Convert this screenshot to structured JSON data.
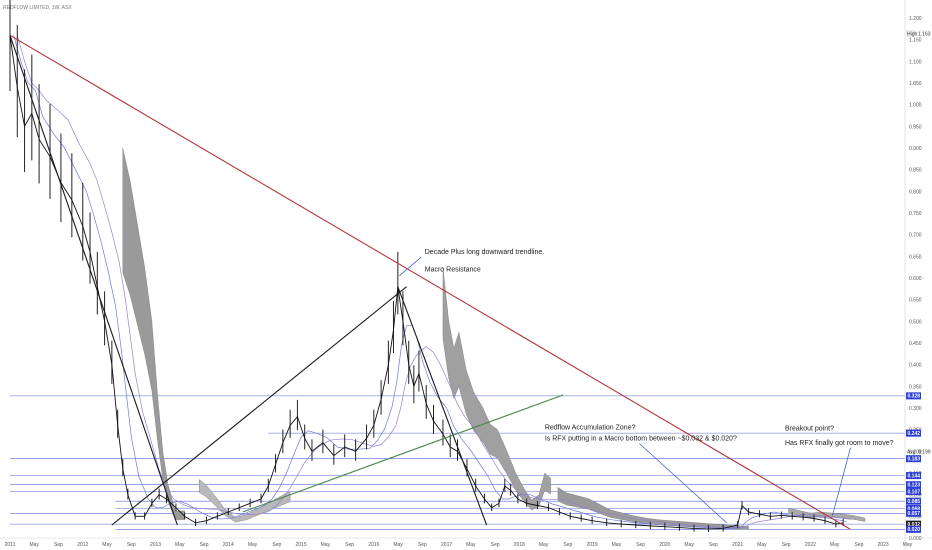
{
  "chart_data": {
    "type": "line",
    "title": "REDFLOW LIMITED, 1W, ASX",
    "y_axis": {
      "min": 0.0,
      "max": 1.2,
      "ticks": [
        "1.200",
        "1.150",
        "1.100",
        "1.050",
        "1.000",
        "0.950",
        "0.900",
        "0.850",
        "0.800",
        "0.750",
        "0.700",
        "0.650",
        "0.600",
        "0.550",
        "0.500",
        "0.450",
        "0.400",
        "0.350",
        "0.300",
        "0.250",
        "0.200",
        "0.150",
        "0.100",
        "0.050",
        "0.000"
      ],
      "price_tags": [
        {
          "label": "0.328",
          "value": 0.328,
          "color": "#2a3bd6"
        },
        {
          "label": "0.242",
          "value": 0.242,
          "color": "#2a3bd6"
        },
        {
          "label": "0.183",
          "value": 0.183,
          "color": "#2a3bd6"
        },
        {
          "label": "0.144",
          "value": 0.144,
          "color": "#2a3bd6"
        },
        {
          "label": "0.123",
          "value": 0.123,
          "color": "#2a3bd6"
        },
        {
          "label": "0.107",
          "value": 0.107,
          "color": "#2a3bd6"
        },
        {
          "label": "0.085",
          "value": 0.085,
          "color": "#2a3bd6"
        },
        {
          "label": "0.068",
          "value": 0.068,
          "color": "#2a3bd6"
        },
        {
          "label": "0.057",
          "value": 0.057,
          "color": "#2a3bd6"
        },
        {
          "label": "0.032",
          "value": 0.032,
          "color": "#1a1a1a"
        },
        {
          "label": "0.020",
          "value": 0.02,
          "color": "#2a3bd6"
        }
      ],
      "high_label": "High",
      "high_value": "1.163",
      "avg_label": "Avg",
      "avg_value": "0.199"
    },
    "x_axis": {
      "ticks": [
        "2011",
        "May",
        "Sep",
        "2012",
        "May",
        "Sep",
        "2013",
        "May",
        "Sep",
        "2014",
        "May",
        "Sep",
        "2015",
        "May",
        "Sep",
        "2016",
        "May",
        "Sep",
        "2017",
        "May",
        "Sep",
        "2018",
        "May",
        "Sep",
        "2019",
        "May",
        "Sep",
        "2020",
        "May",
        "Sep",
        "2021",
        "May",
        "Sep",
        "2022",
        "May",
        "Sep",
        "2023",
        "May"
      ]
    },
    "series": [
      {
        "values": [
          {
            "x": 2011.0,
            "y": 1.16
          },
          {
            "x": 2011.1,
            "y": 1.04
          },
          {
            "x": 2011.2,
            "y": 0.95
          },
          {
            "x": 2011.3,
            "y": 0.98
          },
          {
            "x": 2011.4,
            "y": 0.92
          },
          {
            "x": 2011.55,
            "y": 0.88
          },
          {
            "x": 2011.7,
            "y": 0.82
          },
          {
            "x": 2011.85,
            "y": 0.78
          },
          {
            "x": 2012.0,
            "y": 0.72
          },
          {
            "x": 2012.1,
            "y": 0.66
          },
          {
            "x": 2012.2,
            "y": 0.58
          },
          {
            "x": 2012.3,
            "y": 0.5
          },
          {
            "x": 2012.4,
            "y": 0.4
          },
          {
            "x": 2012.48,
            "y": 0.26
          },
          {
            "x": 2012.55,
            "y": 0.16
          },
          {
            "x": 2012.62,
            "y": 0.1
          },
          {
            "x": 2012.72,
            "y": 0.05
          },
          {
            "x": 2012.85,
            "y": 0.05
          },
          {
            "x": 2012.95,
            "y": 0.08
          },
          {
            "x": 2013.05,
            "y": 0.1
          },
          {
            "x": 2013.15,
            "y": 0.09
          },
          {
            "x": 2013.28,
            "y": 0.07
          },
          {
            "x": 2013.4,
            "y": 0.05
          },
          {
            "x": 2013.55,
            "y": 0.035
          },
          {
            "x": 2013.7,
            "y": 0.04
          },
          {
            "x": 2013.85,
            "y": 0.05
          },
          {
            "x": 2014.0,
            "y": 0.06
          },
          {
            "x": 2014.15,
            "y": 0.07
          },
          {
            "x": 2014.3,
            "y": 0.08
          },
          {
            "x": 2014.45,
            "y": 0.09
          },
          {
            "x": 2014.55,
            "y": 0.12
          },
          {
            "x": 2014.65,
            "y": 0.17
          },
          {
            "x": 2014.75,
            "y": 0.22
          },
          {
            "x": 2014.85,
            "y": 0.26
          },
          {
            "x": 2014.95,
            "y": 0.28
          },
          {
            "x": 2015.05,
            "y": 0.23
          },
          {
            "x": 2015.15,
            "y": 0.2
          },
          {
            "x": 2015.3,
            "y": 0.22
          },
          {
            "x": 2015.45,
            "y": 0.19
          },
          {
            "x": 2015.6,
            "y": 0.21
          },
          {
            "x": 2015.75,
            "y": 0.2
          },
          {
            "x": 2015.9,
            "y": 0.23
          },
          {
            "x": 2016.0,
            "y": 0.26
          },
          {
            "x": 2016.1,
            "y": 0.32
          },
          {
            "x": 2016.2,
            "y": 0.4
          },
          {
            "x": 2016.27,
            "y": 0.48
          },
          {
            "x": 2016.33,
            "y": 0.58
          },
          {
            "x": 2016.4,
            "y": 0.5
          },
          {
            "x": 2016.48,
            "y": 0.4
          },
          {
            "x": 2016.55,
            "y": 0.35
          },
          {
            "x": 2016.62,
            "y": 0.38
          },
          {
            "x": 2016.72,
            "y": 0.31
          },
          {
            "x": 2016.82,
            "y": 0.27
          },
          {
            "x": 2016.95,
            "y": 0.24
          },
          {
            "x": 2017.05,
            "y": 0.21
          },
          {
            "x": 2017.15,
            "y": 0.2
          },
          {
            "x": 2017.28,
            "y": 0.16
          },
          {
            "x": 2017.4,
            "y": 0.12
          },
          {
            "x": 2017.52,
            "y": 0.09
          },
          {
            "x": 2017.62,
            "y": 0.07
          },
          {
            "x": 2017.72,
            "y": 0.08
          },
          {
            "x": 2017.8,
            "y": 0.12
          },
          {
            "x": 2017.88,
            "y": 0.11
          },
          {
            "x": 2017.98,
            "y": 0.09
          },
          {
            "x": 2018.1,
            "y": 0.08
          },
          {
            "x": 2018.25,
            "y": 0.075
          },
          {
            "x": 2018.4,
            "y": 0.07
          },
          {
            "x": 2018.55,
            "y": 0.06
          },
          {
            "x": 2018.7,
            "y": 0.05
          },
          {
            "x": 2018.85,
            "y": 0.045
          },
          {
            "x": 2019.0,
            "y": 0.04
          },
          {
            "x": 2019.2,
            "y": 0.035
          },
          {
            "x": 2019.4,
            "y": 0.032
          },
          {
            "x": 2019.6,
            "y": 0.03
          },
          {
            "x": 2019.8,
            "y": 0.028
          },
          {
            "x": 2020.0,
            "y": 0.026
          },
          {
            "x": 2020.2,
            "y": 0.024
          },
          {
            "x": 2020.4,
            "y": 0.022
          },
          {
            "x": 2020.6,
            "y": 0.021
          },
          {
            "x": 2020.8,
            "y": 0.022
          },
          {
            "x": 2021.0,
            "y": 0.03
          },
          {
            "x": 2021.06,
            "y": 0.075
          },
          {
            "x": 2021.15,
            "y": 0.06
          },
          {
            "x": 2021.3,
            "y": 0.055
          },
          {
            "x": 2021.45,
            "y": 0.05
          },
          {
            "x": 2021.6,
            "y": 0.052
          },
          {
            "x": 2021.75,
            "y": 0.05
          },
          {
            "x": 2021.9,
            "y": 0.048
          },
          {
            "x": 2022.05,
            "y": 0.045
          },
          {
            "x": 2022.2,
            "y": 0.04
          },
          {
            "x": 2022.35,
            "y": 0.032
          },
          {
            "x": 2022.45,
            "y": 0.035
          }
        ]
      }
    ],
    "trendlines": [
      {
        "name": "macro-resistance",
        "color": "#b5333a",
        "from": {
          "x": 2011.0,
          "y": 1.16
        },
        "to": {
          "x": 2022.55,
          "y": 0.02
        }
      },
      {
        "name": "first-decline",
        "color": "#1a1a1a",
        "from": {
          "x": 2011.0,
          "y": 1.16
        },
        "to": {
          "x": 2013.3,
          "y": 0.03
        }
      },
      {
        "name": "rise-to-2016",
        "color": "#1a1a1a",
        "from": {
          "x": 2012.4,
          "y": 0.03
        },
        "to": {
          "x": 2016.45,
          "y": 0.58
        }
      },
      {
        "name": "fall-from-2016",
        "color": "#1a1a1a",
        "from": {
          "x": 2016.33,
          "y": 0.58
        },
        "to": {
          "x": 2017.55,
          "y": 0.03
        }
      },
      {
        "name": "support-rise",
        "color": "#4a8a4a",
        "from": {
          "x": 2014.2,
          "y": 0.06
        },
        "to": {
          "x": 2018.6,
          "y": 0.33
        }
      }
    ],
    "annotations": [
      {
        "text": "Decade Plus long downward trendline.",
        "x": 2016.7,
        "y": 0.655
      },
      {
        "text": "Macro Resistance",
        "x": 2016.7,
        "y": 0.615
      },
      {
        "text": "Redflow Accumulation Zone?",
        "x": 2018.35,
        "y": 0.25
      },
      {
        "text": "Is RFX putting in a Macro bottom between ~$0.032 & $0.020?",
        "x": 2018.35,
        "y": 0.225
      },
      {
        "text": "Breakout point?",
        "x": 2021.65,
        "y": 0.248
      },
      {
        "text": "Has RFX finally got room to move?",
        "x": 2021.65,
        "y": 0.215
      }
    ]
  }
}
